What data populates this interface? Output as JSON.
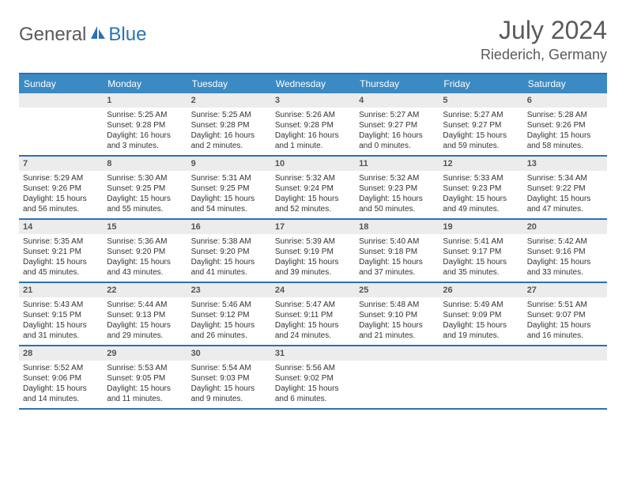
{
  "logo": {
    "general": "General",
    "blue": "Blue"
  },
  "title": {
    "month_year": "July 2024",
    "location": "Riederich, Germany"
  },
  "colors": {
    "header_bg": "#3b8ac4",
    "header_text": "#ffffff",
    "border": "#2a72b5",
    "daynum_bg": "#ececec",
    "text": "#333333",
    "title_text": "#5a5a5a"
  },
  "day_headers": [
    "Sunday",
    "Monday",
    "Tuesday",
    "Wednesday",
    "Thursday",
    "Friday",
    "Saturday"
  ],
  "weeks": [
    [
      {
        "num": "",
        "sunrise": "",
        "sunset": "",
        "daylight1": "",
        "daylight2": ""
      },
      {
        "num": "1",
        "sunrise": "Sunrise: 5:25 AM",
        "sunset": "Sunset: 9:28 PM",
        "daylight1": "Daylight: 16 hours",
        "daylight2": "and 3 minutes."
      },
      {
        "num": "2",
        "sunrise": "Sunrise: 5:25 AM",
        "sunset": "Sunset: 9:28 PM",
        "daylight1": "Daylight: 16 hours",
        "daylight2": "and 2 minutes."
      },
      {
        "num": "3",
        "sunrise": "Sunrise: 5:26 AM",
        "sunset": "Sunset: 9:28 PM",
        "daylight1": "Daylight: 16 hours",
        "daylight2": "and 1 minute."
      },
      {
        "num": "4",
        "sunrise": "Sunrise: 5:27 AM",
        "sunset": "Sunset: 9:27 PM",
        "daylight1": "Daylight: 16 hours",
        "daylight2": "and 0 minutes."
      },
      {
        "num": "5",
        "sunrise": "Sunrise: 5:27 AM",
        "sunset": "Sunset: 9:27 PM",
        "daylight1": "Daylight: 15 hours",
        "daylight2": "and 59 minutes."
      },
      {
        "num": "6",
        "sunrise": "Sunrise: 5:28 AM",
        "sunset": "Sunset: 9:26 PM",
        "daylight1": "Daylight: 15 hours",
        "daylight2": "and 58 minutes."
      }
    ],
    [
      {
        "num": "7",
        "sunrise": "Sunrise: 5:29 AM",
        "sunset": "Sunset: 9:26 PM",
        "daylight1": "Daylight: 15 hours",
        "daylight2": "and 56 minutes."
      },
      {
        "num": "8",
        "sunrise": "Sunrise: 5:30 AM",
        "sunset": "Sunset: 9:25 PM",
        "daylight1": "Daylight: 15 hours",
        "daylight2": "and 55 minutes."
      },
      {
        "num": "9",
        "sunrise": "Sunrise: 5:31 AM",
        "sunset": "Sunset: 9:25 PM",
        "daylight1": "Daylight: 15 hours",
        "daylight2": "and 54 minutes."
      },
      {
        "num": "10",
        "sunrise": "Sunrise: 5:32 AM",
        "sunset": "Sunset: 9:24 PM",
        "daylight1": "Daylight: 15 hours",
        "daylight2": "and 52 minutes."
      },
      {
        "num": "11",
        "sunrise": "Sunrise: 5:32 AM",
        "sunset": "Sunset: 9:23 PM",
        "daylight1": "Daylight: 15 hours",
        "daylight2": "and 50 minutes."
      },
      {
        "num": "12",
        "sunrise": "Sunrise: 5:33 AM",
        "sunset": "Sunset: 9:23 PM",
        "daylight1": "Daylight: 15 hours",
        "daylight2": "and 49 minutes."
      },
      {
        "num": "13",
        "sunrise": "Sunrise: 5:34 AM",
        "sunset": "Sunset: 9:22 PM",
        "daylight1": "Daylight: 15 hours",
        "daylight2": "and 47 minutes."
      }
    ],
    [
      {
        "num": "14",
        "sunrise": "Sunrise: 5:35 AM",
        "sunset": "Sunset: 9:21 PM",
        "daylight1": "Daylight: 15 hours",
        "daylight2": "and 45 minutes."
      },
      {
        "num": "15",
        "sunrise": "Sunrise: 5:36 AM",
        "sunset": "Sunset: 9:20 PM",
        "daylight1": "Daylight: 15 hours",
        "daylight2": "and 43 minutes."
      },
      {
        "num": "16",
        "sunrise": "Sunrise: 5:38 AM",
        "sunset": "Sunset: 9:20 PM",
        "daylight1": "Daylight: 15 hours",
        "daylight2": "and 41 minutes."
      },
      {
        "num": "17",
        "sunrise": "Sunrise: 5:39 AM",
        "sunset": "Sunset: 9:19 PM",
        "daylight1": "Daylight: 15 hours",
        "daylight2": "and 39 minutes."
      },
      {
        "num": "18",
        "sunrise": "Sunrise: 5:40 AM",
        "sunset": "Sunset: 9:18 PM",
        "daylight1": "Daylight: 15 hours",
        "daylight2": "and 37 minutes."
      },
      {
        "num": "19",
        "sunrise": "Sunrise: 5:41 AM",
        "sunset": "Sunset: 9:17 PM",
        "daylight1": "Daylight: 15 hours",
        "daylight2": "and 35 minutes."
      },
      {
        "num": "20",
        "sunrise": "Sunrise: 5:42 AM",
        "sunset": "Sunset: 9:16 PM",
        "daylight1": "Daylight: 15 hours",
        "daylight2": "and 33 minutes."
      }
    ],
    [
      {
        "num": "21",
        "sunrise": "Sunrise: 5:43 AM",
        "sunset": "Sunset: 9:15 PM",
        "daylight1": "Daylight: 15 hours",
        "daylight2": "and 31 minutes."
      },
      {
        "num": "22",
        "sunrise": "Sunrise: 5:44 AM",
        "sunset": "Sunset: 9:13 PM",
        "daylight1": "Daylight: 15 hours",
        "daylight2": "and 29 minutes."
      },
      {
        "num": "23",
        "sunrise": "Sunrise: 5:46 AM",
        "sunset": "Sunset: 9:12 PM",
        "daylight1": "Daylight: 15 hours",
        "daylight2": "and 26 minutes."
      },
      {
        "num": "24",
        "sunrise": "Sunrise: 5:47 AM",
        "sunset": "Sunset: 9:11 PM",
        "daylight1": "Daylight: 15 hours",
        "daylight2": "and 24 minutes."
      },
      {
        "num": "25",
        "sunrise": "Sunrise: 5:48 AM",
        "sunset": "Sunset: 9:10 PM",
        "daylight1": "Daylight: 15 hours",
        "daylight2": "and 21 minutes."
      },
      {
        "num": "26",
        "sunrise": "Sunrise: 5:49 AM",
        "sunset": "Sunset: 9:09 PM",
        "daylight1": "Daylight: 15 hours",
        "daylight2": "and 19 minutes."
      },
      {
        "num": "27",
        "sunrise": "Sunrise: 5:51 AM",
        "sunset": "Sunset: 9:07 PM",
        "daylight1": "Daylight: 15 hours",
        "daylight2": "and 16 minutes."
      }
    ],
    [
      {
        "num": "28",
        "sunrise": "Sunrise: 5:52 AM",
        "sunset": "Sunset: 9:06 PM",
        "daylight1": "Daylight: 15 hours",
        "daylight2": "and 14 minutes."
      },
      {
        "num": "29",
        "sunrise": "Sunrise: 5:53 AM",
        "sunset": "Sunset: 9:05 PM",
        "daylight1": "Daylight: 15 hours",
        "daylight2": "and 11 minutes."
      },
      {
        "num": "30",
        "sunrise": "Sunrise: 5:54 AM",
        "sunset": "Sunset: 9:03 PM",
        "daylight1": "Daylight: 15 hours",
        "daylight2": "and 9 minutes."
      },
      {
        "num": "31",
        "sunrise": "Sunrise: 5:56 AM",
        "sunset": "Sunset: 9:02 PM",
        "daylight1": "Daylight: 15 hours",
        "daylight2": "and 6 minutes."
      },
      {
        "num": "",
        "sunrise": "",
        "sunset": "",
        "daylight1": "",
        "daylight2": ""
      },
      {
        "num": "",
        "sunrise": "",
        "sunset": "",
        "daylight1": "",
        "daylight2": ""
      },
      {
        "num": "",
        "sunrise": "",
        "sunset": "",
        "daylight1": "",
        "daylight2": ""
      }
    ]
  ]
}
